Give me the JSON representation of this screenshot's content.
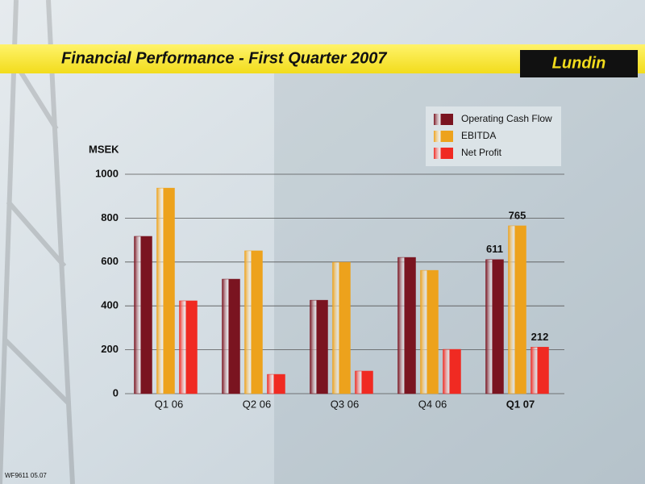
{
  "chart_data": {
    "type": "bar",
    "title": "Financial Performance - First Quarter 2007",
    "logo": "Lundin",
    "footer": "WF9611 05.07",
    "y_label": "MSEK",
    "categories": [
      "Q1 06",
      "Q2 06",
      "Q3 06",
      "Q4 06",
      "Q1 07"
    ],
    "series": [
      {
        "name": "Operating Cash Flow",
        "color": "#7a1420",
        "values": [
          717,
          522,
          426,
          621,
          611
        ],
        "value_labels": [
          null,
          null,
          null,
          null,
          "611"
        ]
      },
      {
        "name": "EBITDA",
        "color": "#eda21c",
        "values": [
          937,
          651,
          599,
          562,
          765
        ],
        "value_labels": [
          null,
          null,
          null,
          null,
          "765"
        ]
      },
      {
        "name": "Net Profit",
        "color": "#f02a22",
        "values": [
          423,
          88,
          103,
          202,
          212
        ],
        "value_labels": [
          null,
          null,
          null,
          null,
          "212"
        ]
      }
    ],
    "ylim": [
      0,
      1000
    ],
    "yticks": [
      0,
      200,
      400,
      600,
      800,
      1000
    ],
    "grid": true,
    "legend": "top-right"
  }
}
